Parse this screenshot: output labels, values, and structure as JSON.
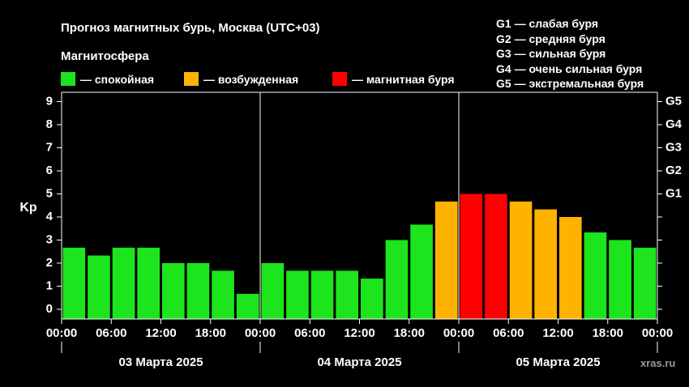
{
  "header": {
    "title": "Прогноз магнитных бурь, Москва (UTC+03)",
    "subtitle": "Магнитосфера"
  },
  "legend": {
    "calm": {
      "label": "— спокойная",
      "color": "#1de51d"
    },
    "excited": {
      "label": "— возбужденная",
      "color": "#ffb300"
    },
    "storm": {
      "label": "— магнитная буря",
      "color": "#ff0000"
    }
  },
  "storm_levels": [
    "G1 — слабая буря",
    "G2 — средняя буря",
    "G3 — сильная буря",
    "G4 — очень сильная буря",
    "G5 — экстремальная буря"
  ],
  "watermark": "xras.ru",
  "chart_data": {
    "type": "bar",
    "ylabel": "Kp",
    "ylim": [
      0,
      9.4
    ],
    "yticks": [
      0,
      1,
      2,
      3,
      4,
      5,
      6,
      7,
      8,
      9
    ],
    "right_ticks": [
      {
        "kp": 5,
        "label": "G1"
      },
      {
        "kp": 6,
        "label": "G2"
      },
      {
        "kp": 7,
        "label": "G3"
      },
      {
        "kp": 8,
        "label": "G4"
      },
      {
        "kp": 9,
        "label": "G5"
      }
    ],
    "xtick_labels": [
      "00:00",
      "06:00",
      "12:00",
      "18:00",
      "00:00",
      "06:00",
      "12:00",
      "18:00",
      "00:00",
      "06:00",
      "12:00",
      "18:00",
      "00:00"
    ],
    "days": [
      "03 Марта 2025",
      "04 Марта 2025",
      "05 Марта 2025"
    ],
    "values": [
      2.67,
      2.33,
      2.67,
      2.67,
      2.0,
      2.0,
      1.67,
      0.67,
      2.0,
      1.67,
      1.67,
      1.67,
      1.33,
      3.0,
      3.67,
      4.67,
      5.0,
      5.0,
      4.67,
      4.33,
      4.0,
      3.33,
      3.0,
      2.67
    ],
    "colors": {
      "calm": "#1de51d",
      "excited": "#ffb300",
      "storm": "#ff0000"
    },
    "thresholds": {
      "excited": 4,
      "storm": 5
    }
  }
}
